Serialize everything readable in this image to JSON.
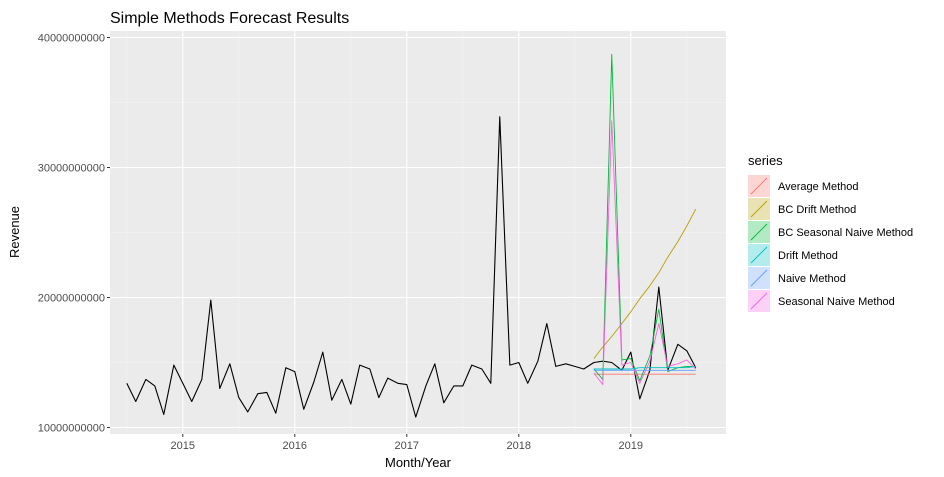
{
  "chart_data": {
    "type": "line",
    "title": "Simple Methods Forecast Results",
    "xlabel": "Month/Year",
    "ylabel": "Revenue",
    "xlim": [
      2014.35,
      2019.85
    ],
    "ylim": [
      9500000000,
      40500000000
    ],
    "x_ticks": [
      2015,
      2016,
      2017,
      2018,
      2019
    ],
    "x_tick_labels": [
      "2015",
      "2016",
      "2017",
      "2018",
      "2019"
    ],
    "y_ticks": [
      10000000000,
      20000000000,
      30000000000,
      40000000000
    ],
    "y_tick_labels": [
      "10000000000",
      "20000000000",
      "30000000000",
      "40000000000"
    ],
    "grid": true,
    "legend": {
      "title": "series",
      "position": "right"
    },
    "actual": {
      "x": [
        2014.5,
        2014.58,
        2014.67,
        2014.75,
        2014.83,
        2014.92,
        2015.0,
        2015.08,
        2015.17,
        2015.25,
        2015.33,
        2015.42,
        2015.5,
        2015.58,
        2015.67,
        2015.75,
        2015.83,
        2015.92,
        2016.0,
        2016.08,
        2016.17,
        2016.25,
        2016.33,
        2016.42,
        2016.5,
        2016.58,
        2016.67,
        2016.75,
        2016.83,
        2016.92,
        2017.0,
        2017.08,
        2017.17,
        2017.25,
        2017.33,
        2017.42,
        2017.5,
        2017.58,
        2017.67,
        2017.75,
        2017.83,
        2017.92,
        2018.0,
        2018.08,
        2018.17,
        2018.25,
        2018.33,
        2018.42,
        2018.5,
        2018.58,
        2018.67,
        2018.75,
        2018.83,
        2018.92,
        2019.0,
        2019.08,
        2019.17,
        2019.25,
        2019.33,
        2019.42,
        2019.5,
        2019.58
      ],
      "values": [
        13400000000,
        12000000000,
        13700000000,
        13200000000,
        11000000000,
        14800000000,
        13400000000,
        12000000000,
        13700000000,
        19800000000,
        13000000000,
        14900000000,
        12300000000,
        11200000000,
        12600000000,
        12700000000,
        11100000000,
        14600000000,
        14300000000,
        11400000000,
        13500000000,
        15800000000,
        12100000000,
        13700000000,
        11800000000,
        14800000000,
        14500000000,
        12300000000,
        13800000000,
        13400000000,
        13300000000,
        10800000000,
        13200000000,
        14900000000,
        11900000000,
        13200000000,
        13200000000,
        14800000000,
        14500000000,
        13400000000,
        33900000000,
        14800000000,
        15000000000,
        13400000000,
        15100000000,
        18000000000,
        14700000000,
        14900000000,
        14700000000,
        14500000000,
        15000000000,
        15100000000,
        15000000000,
        14400000000,
        15800000000,
        12200000000,
        14400000000,
        20800000000,
        14400000000,
        16400000000,
        15900000000,
        14600000000
      ]
    },
    "forecast_x": [
      2018.67,
      2018.75,
      2018.83,
      2018.92,
      2019.0,
      2019.08,
      2019.17,
      2019.25,
      2019.33,
      2019.42,
      2019.5,
      2019.58
    ],
    "series": [
      {
        "name": "Average Method",
        "color": "#F8766D",
        "values": [
          14100000000,
          14100000000,
          14100000000,
          14100000000,
          14100000000,
          14100000000,
          14100000000,
          14100000000,
          14100000000,
          14100000000,
          14100000000,
          14100000000
        ]
      },
      {
        "name": "BC Drift Method",
        "color": "#B79F00",
        "values": [
          15300000000,
          16200000000,
          17000000000,
          18000000000,
          18900000000,
          19900000000,
          20900000000,
          21900000000,
          23100000000,
          24300000000,
          25500000000,
          26800000000
        ]
      },
      {
        "name": "BC Seasonal Naive Method",
        "color": "#00BA38",
        "values": [
          14500000000,
          13700000000,
          38700000000,
          15200000000,
          15300000000,
          13600000000,
          15500000000,
          19100000000,
          14300000000,
          14600000000,
          14700000000,
          14700000000
        ]
      },
      {
        "name": "Drift Method",
        "color": "#00BFC4",
        "values": [
          14500000000,
          14500000000,
          14500000000,
          14500000000,
          14500000000,
          14600000000,
          14600000000,
          14600000000,
          14600000000,
          14600000000,
          14600000000,
          14700000000
        ]
      },
      {
        "name": "Naive Method",
        "color": "#619CFF",
        "values": [
          14400000000,
          14400000000,
          14400000000,
          14400000000,
          14400000000,
          14400000000,
          14400000000,
          14400000000,
          14400000000,
          14400000000,
          14400000000,
          14400000000
        ]
      },
      {
        "name": "Seasonal Naive Method",
        "color": "#F564E3",
        "values": [
          14200000000,
          13300000000,
          33600000000,
          14800000000,
          15000000000,
          13400000000,
          15100000000,
          18000000000,
          14700000000,
          14900000000,
          15200000000,
          14500000000
        ]
      }
    ]
  }
}
